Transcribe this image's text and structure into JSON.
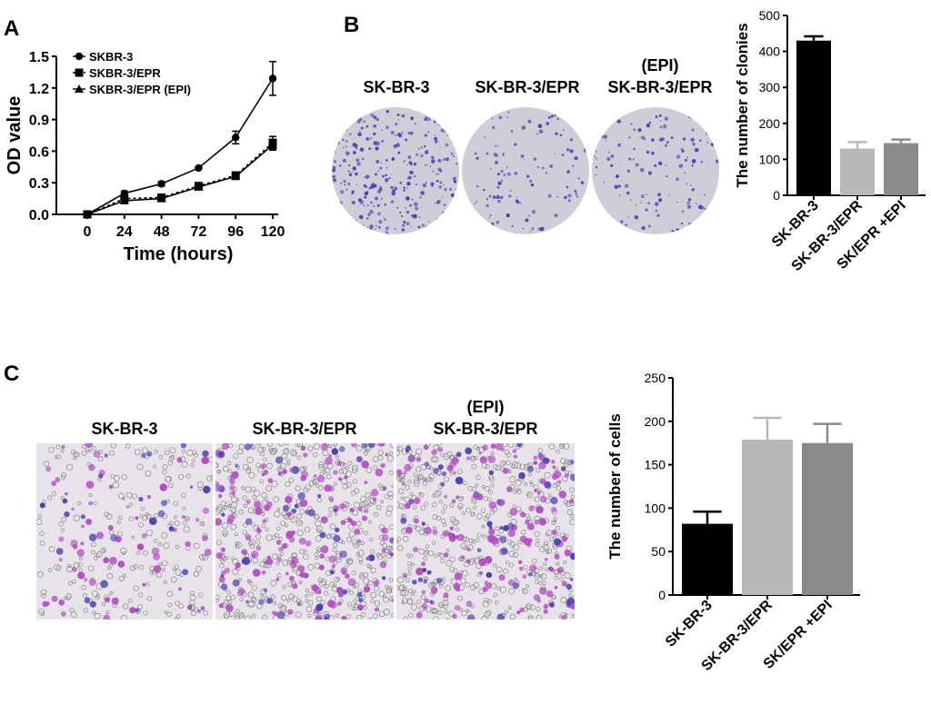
{
  "panels": {
    "a": "A",
    "b": "B",
    "c": "C"
  },
  "dish_labels": {
    "l1": "SK-BR-3",
    "l2": "SK-BR-3/EPR",
    "l3a": "(EPI)",
    "l3b": "SK-BR-3/EPR"
  },
  "micro_labels": {
    "l1": "SK-BR-3",
    "l2": "SK-BR-3/EPR",
    "l3a": "(EPI)",
    "l3b": "SK-BR-3/EPR"
  },
  "colors": {
    "stain_dark": "#4a3fb0",
    "stain_magenta": "#b24fc2",
    "dish_bg": "#cfcdd8",
    "micro_bg": "#e8e2ea",
    "bar_black": "#000000",
    "bar_light": "#b8b8b8",
    "bar_mid": "#8a8a8a"
  },
  "chart_data": [
    {
      "id": "A",
      "type": "line",
      "xlabel": "Time (hours)",
      "ylabel": "OD value",
      "x": [
        0,
        24,
        48,
        72,
        96,
        120
      ],
      "xticks": [
        "0",
        "24",
        "48",
        "72",
        "96",
        "120"
      ],
      "yticks": [
        "0.0",
        "0.3",
        "0.6",
        "0.9",
        "1.2",
        "1.5"
      ],
      "ylim": [
        0,
        1.5
      ],
      "legend_position": "top-left",
      "series": [
        {
          "name": "SKBR-3",
          "marker": "diamond",
          "dash": "solid",
          "values": [
            0,
            0.2,
            0.29,
            0.44,
            0.73,
            1.29
          ],
          "errors": [
            0,
            0.02,
            0.02,
            0.01,
            0.06,
            0.16
          ]
        },
        {
          "name": "SKBR-3/EPR",
          "marker": "square",
          "dash": "dotted",
          "values": [
            0,
            0.15,
            0.16,
            0.27,
            0.37,
            0.68
          ],
          "errors": [
            0,
            0.02,
            0.02,
            0.02,
            0.02,
            0.06
          ]
        },
        {
          "name": "SKBR-3/EPR (EPI)",
          "marker": "triangle",
          "dash": "solid",
          "values": [
            0,
            0.13,
            0.15,
            0.26,
            0.36,
            0.66
          ],
          "errors": [
            0,
            0.02,
            0.02,
            0.02,
            0.02,
            0.05
          ]
        }
      ]
    },
    {
      "id": "B",
      "type": "bar",
      "ylabel": "The number of clonies",
      "categories": [
        "SK-BR-3",
        "SK-BR-3/EPR",
        "SK/EPR +EPI"
      ],
      "values": [
        430,
        130,
        145
      ],
      "errors": [
        12,
        18,
        10
      ],
      "ylim": [
        0,
        500
      ],
      "yticks": [
        "0",
        "100",
        "200",
        "300",
        "400",
        "500"
      ]
    },
    {
      "id": "C",
      "type": "bar",
      "ylabel": "The number of cells",
      "categories": [
        "SK-BR-3",
        "SK-BR-3/EPR",
        "SK/EPR +EPI"
      ],
      "values": [
        82,
        179,
        175
      ],
      "errors": [
        14,
        25,
        22
      ],
      "ylim": [
        0,
        250
      ],
      "yticks": [
        "0",
        "50",
        "100",
        "150",
        "200",
        "250"
      ]
    }
  ]
}
